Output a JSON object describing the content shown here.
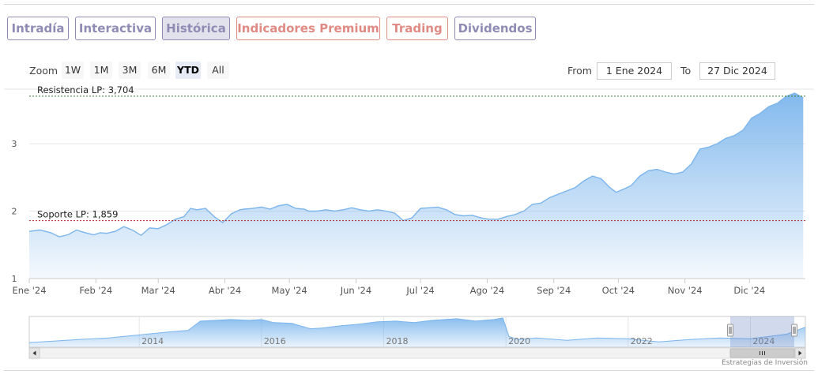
{
  "tabs": [
    {
      "label": "Intradía",
      "active": false,
      "style": "normal"
    },
    {
      "label": "Interactiva",
      "active": false,
      "style": "normal"
    },
    {
      "label": "Histórica",
      "active": true,
      "style": "normal"
    },
    {
      "label": "Indicadores Premium",
      "active": false,
      "style": "premium"
    },
    {
      "label": "Trading",
      "active": false,
      "style": "premium"
    },
    {
      "label": "Dividendos",
      "active": false,
      "style": "normal"
    }
  ],
  "zoom": {
    "label": "Zoom",
    "buttons": [
      "1W",
      "1M",
      "3M",
      "6M",
      "YTD",
      "All"
    ],
    "selected": "YTD"
  },
  "range": {
    "from_label": "From",
    "from_value": "1 Ene 2024",
    "to_label": "To",
    "to_value": "27 Dic 2024"
  },
  "credits": "Estrategias de Inversión",
  "colors": {
    "tab_border": "#8f8bb5",
    "premium": "#e08a84",
    "line": "#7cb5ec",
    "resistance": "#2f7d2f",
    "support": "#b22222"
  },
  "chart_data": [
    {
      "type": "area",
      "x_tick_labels": [
        "Ene '24",
        "Feb '24",
        "Mar '24",
        "Abr '24",
        "May '24",
        "Jun '24",
        "Jul '24",
        "Ago '24",
        "Sep '24",
        "Oct '24",
        "Nov '24",
        "Dic '24"
      ],
      "y_tick_labels": [
        "1",
        "2",
        "3"
      ],
      "ylim": [
        1,
        3.75
      ],
      "xlim": [
        0,
        361
      ],
      "x": [
        0,
        5,
        10,
        14,
        18,
        22,
        26,
        30,
        33,
        36,
        40,
        44,
        48,
        52,
        56,
        60,
        64,
        68,
        72,
        75,
        78,
        82,
        86,
        90,
        94,
        98,
        100,
        104,
        108,
        112,
        116,
        120,
        124,
        128,
        130,
        134,
        138,
        142,
        146,
        150,
        154,
        158,
        162,
        166,
        170,
        174,
        178,
        182,
        186,
        190,
        194,
        198,
        202,
        206,
        210,
        214,
        218,
        222,
        226,
        230,
        234,
        238,
        242,
        246,
        250,
        254,
        258,
        262,
        266,
        270,
        273,
        276,
        280,
        284,
        288,
        292,
        296,
        300,
        304,
        308,
        312,
        316,
        320,
        324,
        328,
        332,
        336,
        340,
        344,
        348,
        352,
        356,
        360
      ],
      "series": [
        {
          "values": [
            1.7,
            1.72,
            1.68,
            1.62,
            1.65,
            1.72,
            1.68,
            1.65,
            1.68,
            1.67,
            1.7,
            1.77,
            1.72,
            1.64,
            1.75,
            1.74,
            1.8,
            1.88,
            1.92,
            2.04,
            2.02,
            2.04,
            1.92,
            1.83,
            1.96,
            2.02,
            2.03,
            2.04,
            2.06,
            2.03,
            2.08,
            2.1,
            2.04,
            2.03,
            2.0,
            2.0,
            2.02,
            2.0,
            2.02,
            2.05,
            2.02,
            2.0,
            2.02,
            2.0,
            1.97,
            1.86,
            1.9,
            2.04,
            2.05,
            2.06,
            2.02,
            1.95,
            1.93,
            1.94,
            1.9,
            1.88,
            1.88,
            1.92,
            1.95,
            2.0,
            2.1,
            2.12,
            2.2,
            2.25,
            2.3,
            2.35,
            2.45,
            2.52,
            2.48,
            2.35,
            2.28,
            2.32,
            2.38,
            2.52,
            2.6,
            2.62,
            2.58,
            2.55,
            2.58,
            2.7,
            2.92,
            2.95,
            3.0,
            3.08,
            3.12,
            3.2,
            3.38,
            3.45,
            3.55,
            3.6,
            3.7,
            3.75,
            3.68
          ]
        }
      ],
      "annotations": [
        {
          "label": "Resistencia LP: 3,704",
          "value": 3.704
        },
        {
          "label": "Soporte LP: 1,859",
          "value": 1.859
        }
      ]
    },
    {
      "type": "area",
      "x_tick_labels": [
        "2014",
        "2016",
        "2018",
        "2020",
        "2022",
        "2024"
      ],
      "xlim": [
        2012.2,
        2024.9
      ],
      "x": [
        2012.2,
        2012.6,
        2013.0,
        2013.5,
        2014.0,
        2014.5,
        2014.8,
        2015.0,
        2015.5,
        2015.8,
        2016.0,
        2016.2,
        2016.5,
        2016.8,
        2017.0,
        2017.3,
        2017.6,
        2017.9,
        2018.2,
        2018.5,
        2018.8,
        2019.0,
        2019.2,
        2019.5,
        2019.8,
        2019.95,
        2020.05,
        2020.2,
        2020.5,
        2021.0,
        2021.5,
        2022.0,
        2022.5,
        2023.0,
        2023.5,
        2024.0,
        2024.3,
        2024.6,
        2024.9
      ],
      "series": [
        {
          "values": [
            0.3,
            0.4,
            0.5,
            0.6,
            0.8,
            1.0,
            1.1,
            1.7,
            1.8,
            1.75,
            1.8,
            1.6,
            1.55,
            1.2,
            1.25,
            1.4,
            1.5,
            1.65,
            1.7,
            1.6,
            1.75,
            1.8,
            1.85,
            1.7,
            1.8,
            1.9,
            0.7,
            0.5,
            0.6,
            0.45,
            0.6,
            0.55,
            0.35,
            0.5,
            0.6,
            0.55,
            0.7,
            0.85,
            1.3
          ]
        }
      ]
    }
  ]
}
